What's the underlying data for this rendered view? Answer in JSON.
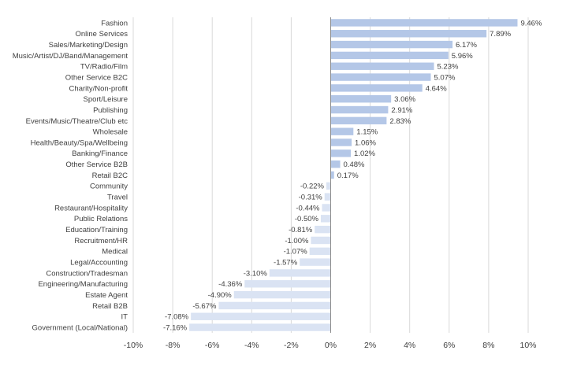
{
  "chart_data": {
    "type": "bar",
    "orientation": "horizontal",
    "title": "",
    "xlabel": "",
    "ylabel": "",
    "xlim": [
      -10,
      10
    ],
    "x_ticks": [
      "-10%",
      "-8%",
      "-6%",
      "-4%",
      "-2%",
      "0%",
      "2%",
      "4%",
      "6%",
      "8%",
      "10%"
    ],
    "x_tick_values": [
      -10,
      -8,
      -6,
      -4,
      -2,
      0,
      2,
      4,
      6,
      8,
      10
    ],
    "grid": "vertical",
    "legend": "none",
    "colors": {
      "positive": "#b4c7e7",
      "negative": "#dae3f3"
    },
    "categories": [
      "Fashion",
      "Online Services",
      "Sales/Marketing/Design",
      "Music/Artist/DJ/Band/Management",
      "TV/Radio/Film",
      "Other Service B2C",
      "Charity/Non-profit",
      "Sport/Leisure",
      "Publishing",
      "Events/Music/Theatre/Club etc",
      "Wholesale",
      "Health/Beauty/Spa/Wellbeing",
      "Banking/Finance",
      "Other Service B2B",
      "Retail B2C",
      "Community",
      "Travel",
      "Restaurant/Hospitality",
      "Public Relations",
      "Education/Training",
      "Recruitment/HR",
      "Medical",
      "Legal/Accounting",
      "Construction/Tradesman",
      "Engineering/Manufacturing",
      "Estate Agent",
      "Retail B2B",
      "IT",
      "Government (Local/National)"
    ],
    "values": [
      9.46,
      7.89,
      6.17,
      5.96,
      5.23,
      5.07,
      4.64,
      3.06,
      2.91,
      2.83,
      1.15,
      1.06,
      1.02,
      0.48,
      0.17,
      -0.22,
      -0.31,
      -0.44,
      -0.5,
      -0.81,
      -1.0,
      -1.07,
      -1.57,
      -3.1,
      -4.36,
      -4.9,
      -5.67,
      -7.08,
      -7.16
    ],
    "value_labels": [
      "9.46%",
      "7.89%",
      "6.17%",
      "5.96%",
      "5.23%",
      "5.07%",
      "4.64%",
      "3.06%",
      "2.91%",
      "2.83%",
      "1.15%",
      "1.06%",
      "1.02%",
      "0.48%",
      "0.17%",
      "-0.22%",
      "-0.31%",
      "-0.44%",
      "-0.50%",
      "-0.81%",
      "-1.00%",
      "-1.07%",
      "-1.57%",
      "-3.10%",
      "-4.36%",
      "-4.90%",
      "-5.67%",
      "-7.08%",
      "-7.16%"
    ]
  }
}
